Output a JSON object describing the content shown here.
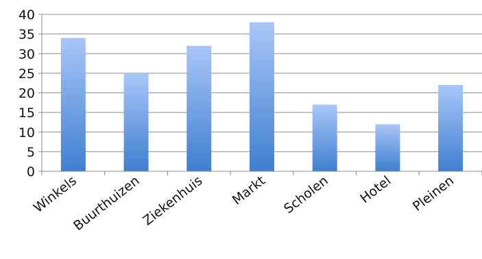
{
  "chart_data": {
    "type": "bar",
    "categories": [
      "Winkels",
      "Buurthuizen",
      "Ziekenhuis",
      "Markt",
      "Scholen",
      "Hotel",
      "Pleinen"
    ],
    "values": [
      34,
      25,
      32,
      38,
      17,
      12,
      22
    ],
    "ylim": [
      0,
      40
    ],
    "yticks": [
      0,
      5,
      10,
      15,
      20,
      25,
      30,
      35,
      40
    ],
    "grid": true,
    "legend": "none",
    "colors": {
      "bar_top": "#a9c6f7",
      "bar_bottom": "#3f7fd0",
      "grid": "#8c8c8c",
      "axis": "#8c8c8c"
    }
  }
}
